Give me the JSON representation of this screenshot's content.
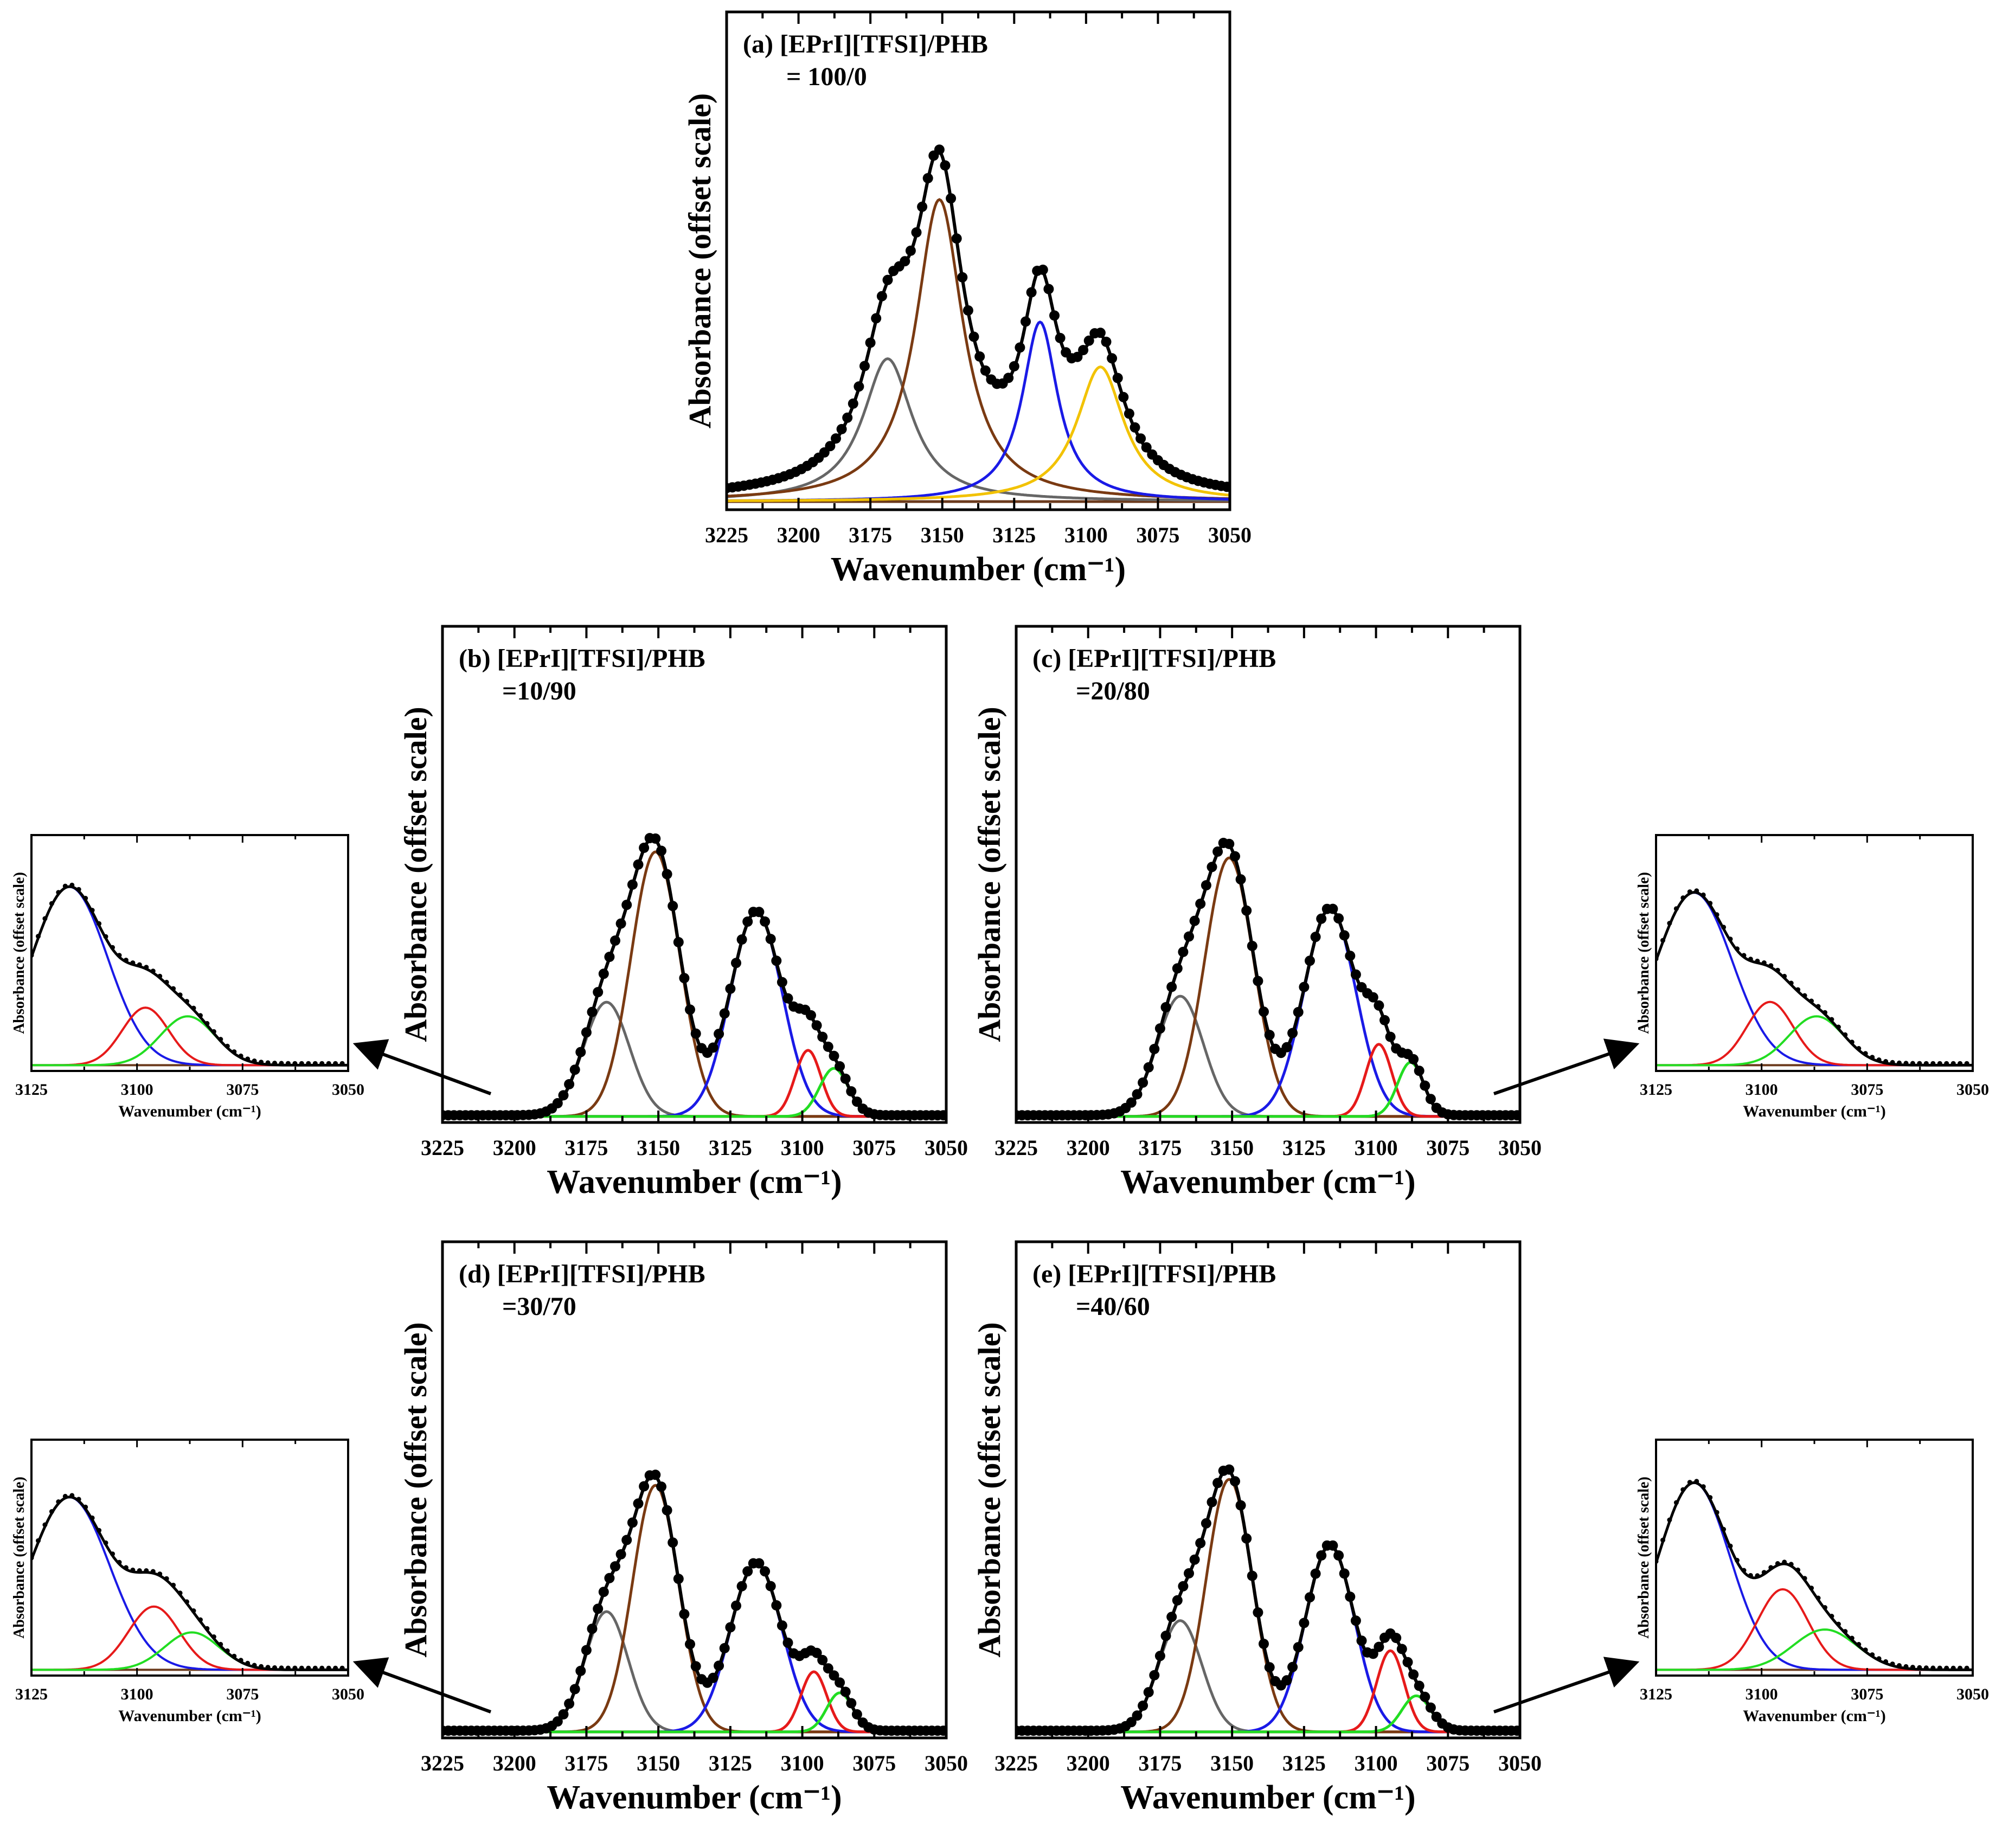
{
  "colors": {
    "data_points": "#000000",
    "envelope": "#000000",
    "baseline": "#6b3a1c",
    "gray": "#666666",
    "brown": "#7a3a12",
    "blue": "#1a1ae6",
    "yellow": "#f2c200",
    "red": "#e61a1a",
    "green": "#22dd22",
    "arrow": "#000000"
  },
  "chart_data": [
    {
      "id": "a",
      "type": "line",
      "label_line1": "(a) [EPrI][TFSI]/PHB",
      "label_line2": "= 100/0",
      "xlabel": "Wavenumber (cm⁻¹)",
      "ylabel": "Absorbance (offset scale)",
      "xlim": [
        3225,
        3050
      ],
      "x_reversed": true,
      "xticks": [
        "3225",
        "3200",
        "3175",
        "3150",
        "3125",
        "3100",
        "3075",
        "3050"
      ],
      "ylim": [
        0,
        1.22
      ],
      "baseline": 0.02,
      "components": [
        {
          "color": "gray",
          "center": 3169,
          "height": 0.35,
          "width": 10.5,
          "shape": "lorentz"
        },
        {
          "color": "brown",
          "center": 3151,
          "height": 0.74,
          "width": 10,
          "shape": "lorentz"
        },
        {
          "color": "blue",
          "center": 3116,
          "height": 0.44,
          "width": 7.5,
          "shape": "lorentz"
        },
        {
          "color": "yellow",
          "center": 3095,
          "height": 0.33,
          "width": 10,
          "shape": "lorentz"
        }
      ]
    },
    {
      "id": "b",
      "type": "line",
      "label_line1": "(b) [EPrI][TFSI]/PHB",
      "label_line2": "=10/90",
      "xlabel": "Wavenumber (cm⁻¹)",
      "ylabel": "Absorbance (offset scale)",
      "xlim": [
        3225,
        3050
      ],
      "x_reversed": true,
      "xticks": [
        "3225",
        "3200",
        "3175",
        "3150",
        "3125",
        "3100",
        "3075",
        "3050"
      ],
      "ylim": [
        0,
        1.65
      ],
      "baseline": 0.02,
      "components": [
        {
          "color": "gray",
          "center": 3168,
          "height": 0.38,
          "width": 8
        },
        {
          "color": "brown",
          "center": 3151,
          "height": 0.88,
          "width": 8.5
        },
        {
          "color": "blue",
          "center": 3116,
          "height": 0.68,
          "width": 9
        },
        {
          "color": "red",
          "center": 3098,
          "height": 0.22,
          "width": 4.5
        },
        {
          "color": "green",
          "center": 3089,
          "height": 0.16,
          "width": 5
        }
      ]
    },
    {
      "id": "c",
      "type": "line",
      "label_line1": "(c) [EPrI][TFSI]/PHB",
      "label_line2": "=20/80",
      "xlabel": "Wavenumber (cm⁻¹)",
      "ylabel": "Absorbance (offset scale)",
      "xlim": [
        3225,
        3050
      ],
      "x_reversed": true,
      "xticks": [
        "3225",
        "3200",
        "3175",
        "3150",
        "3125",
        "3100",
        "3075",
        "3050"
      ],
      "ylim": [
        0,
        1.65
      ],
      "baseline": 0.02,
      "components": [
        {
          "color": "gray",
          "center": 3168,
          "height": 0.4,
          "width": 8
        },
        {
          "color": "brown",
          "center": 3151,
          "height": 0.86,
          "width": 8.5
        },
        {
          "color": "blue",
          "center": 3116,
          "height": 0.69,
          "width": 9
        },
        {
          "color": "red",
          "center": 3099,
          "height": 0.24,
          "width": 4.5
        },
        {
          "color": "green",
          "center": 3088,
          "height": 0.18,
          "width": 4.5
        }
      ]
    },
    {
      "id": "d",
      "type": "line",
      "label_line1": "(d) [EPrI][TFSI]/PHB",
      "label_line2": "=30/70",
      "xlabel": "Wavenumber (cm⁻¹)",
      "ylabel": "Absorbance (offset scale)",
      "xlim": [
        3225,
        3050
      ],
      "x_reversed": true,
      "xticks": [
        "3225",
        "3200",
        "3175",
        "3150",
        "3125",
        "3100",
        "3075",
        "3050"
      ],
      "ylim": [
        0,
        1.65
      ],
      "baseline": 0.02,
      "components": [
        {
          "color": "gray",
          "center": 3168,
          "height": 0.4,
          "width": 7.5
        },
        {
          "color": "brown",
          "center": 3151,
          "height": 0.82,
          "width": 8
        },
        {
          "color": "blue",
          "center": 3116,
          "height": 0.56,
          "width": 9
        },
        {
          "color": "red",
          "center": 3096,
          "height": 0.2,
          "width": 4.5
        },
        {
          "color": "green",
          "center": 3087,
          "height": 0.13,
          "width": 4.5
        }
      ]
    },
    {
      "id": "e",
      "type": "line",
      "label_line1": "(e) [EPrI][TFSI]/PHB",
      "label_line2": "=40/60",
      "xlabel": "Wavenumber (cm⁻¹)",
      "ylabel": "Absorbance (offset scale)",
      "xlim": [
        3225,
        3050
      ],
      "x_reversed": true,
      "xticks": [
        "3225",
        "3200",
        "3175",
        "3150",
        "3125",
        "3100",
        "3075",
        "3050"
      ],
      "ylim": [
        0,
        1.65
      ],
      "baseline": 0.02,
      "components": [
        {
          "color": "gray",
          "center": 3168,
          "height": 0.37,
          "width": 7.5
        },
        {
          "color": "brown",
          "center": 3151,
          "height": 0.84,
          "width": 8
        },
        {
          "color": "blue",
          "center": 3116,
          "height": 0.62,
          "width": 8.5
        },
        {
          "color": "red",
          "center": 3095,
          "height": 0.27,
          "width": 4.8
        },
        {
          "color": "green",
          "center": 3086,
          "height": 0.12,
          "width": 5
        }
      ]
    },
    {
      "id": "inset-b",
      "type": "line",
      "xlabel": "Wavenumber (cm⁻¹)",
      "ylabel": "Absorbance (offset scale)",
      "xlim": [
        3125,
        3050
      ],
      "x_reversed": true,
      "xticks": [
        "3125",
        "3100",
        "3075",
        "3050"
      ],
      "ylim": [
        0,
        0.82
      ],
      "baseline": 0.02,
      "components": [
        {
          "color": "blue",
          "center": 3116,
          "height": 0.62,
          "width": 9
        },
        {
          "color": "red",
          "center": 3098,
          "height": 0.2,
          "width": 5.5
        },
        {
          "color": "green",
          "center": 3088,
          "height": 0.17,
          "width": 6.5
        }
      ]
    },
    {
      "id": "inset-c",
      "type": "line",
      "xlabel": "Wavenumber (cm⁻¹)",
      "ylabel": "Absorbance (offset scale)",
      "xlim": [
        3125,
        3050
      ],
      "x_reversed": true,
      "xticks": [
        "3125",
        "3100",
        "3075",
        "3050"
      ],
      "ylim": [
        0,
        0.82
      ],
      "baseline": 0.02,
      "components": [
        {
          "color": "blue",
          "center": 3116,
          "height": 0.6,
          "width": 9
        },
        {
          "color": "red",
          "center": 3098,
          "height": 0.22,
          "width": 5.5
        },
        {
          "color": "green",
          "center": 3087,
          "height": 0.17,
          "width": 6.5
        }
      ]
    },
    {
      "id": "inset-d",
      "type": "line",
      "xlabel": "Wavenumber (cm⁻¹)",
      "ylabel": "Absorbance (offset scale)",
      "xlim": [
        3125,
        3050
      ],
      "x_reversed": true,
      "xticks": [
        "3125",
        "3100",
        "3075",
        "3050"
      ],
      "ylim": [
        0,
        0.82
      ],
      "baseline": 0.02,
      "components": [
        {
          "color": "blue",
          "center": 3116,
          "height": 0.6,
          "width": 9.5
        },
        {
          "color": "red",
          "center": 3096,
          "height": 0.22,
          "width": 6
        },
        {
          "color": "green",
          "center": 3087,
          "height": 0.13,
          "width": 6.5
        }
      ]
    },
    {
      "id": "inset-e",
      "type": "line",
      "xlabel": "Wavenumber (cm⁻¹)",
      "ylabel": "Absorbance (offset scale)",
      "xlim": [
        3125,
        3050
      ],
      "x_reversed": true,
      "xticks": [
        "3125",
        "3100",
        "3075",
        "3050"
      ],
      "ylim": [
        0,
        0.82
      ],
      "baseline": 0.02,
      "components": [
        {
          "color": "blue",
          "center": 3116,
          "height": 0.65,
          "width": 8.5
        },
        {
          "color": "red",
          "center": 3095,
          "height": 0.28,
          "width": 6
        },
        {
          "color": "green",
          "center": 3085,
          "height": 0.14,
          "width": 7.5
        }
      ]
    }
  ]
}
